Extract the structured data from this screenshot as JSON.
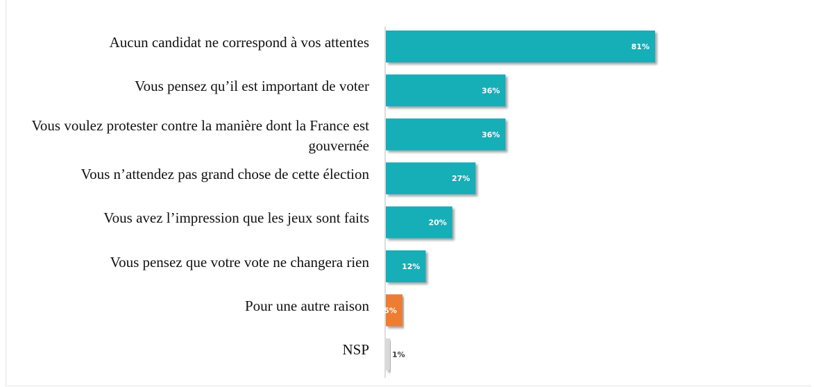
{
  "chart_data": {
    "type": "bar",
    "orientation": "horizontal",
    "categories": [
      "Aucun candidat ne correspond à vos attentes",
      "Vous pensez qu’il est important de voter",
      "Vous voulez protester contre la manière dont la France est gouvernée",
      "Vous n’attendez pas grand chose de cette élection",
      "Vous avez l’impression que les jeux sont faits",
      "Vous pensez que votre vote ne changera rien",
      "Pour une autre raison",
      "NSP"
    ],
    "values": [
      81,
      36,
      36,
      27,
      20,
      12,
      5,
      1
    ],
    "data_labels": [
      "81%",
      "36%",
      "36%",
      "27%",
      "20%",
      "12%",
      "5%",
      "1%"
    ],
    "colors": [
      "#17aeb7",
      "#17aeb7",
      "#17aeb7",
      "#17aeb7",
      "#17aeb7",
      "#17aeb7",
      "#ed7d31",
      "#d9d9d9"
    ],
    "label_colors": [
      "#ffffff",
      "#ffffff",
      "#ffffff",
      "#ffffff",
      "#ffffff",
      "#ffffff",
      "#ffffff",
      "#404040"
    ],
    "unit": "%",
    "xlim": [
      0,
      100
    ],
    "grid": false,
    "legend": "none"
  }
}
